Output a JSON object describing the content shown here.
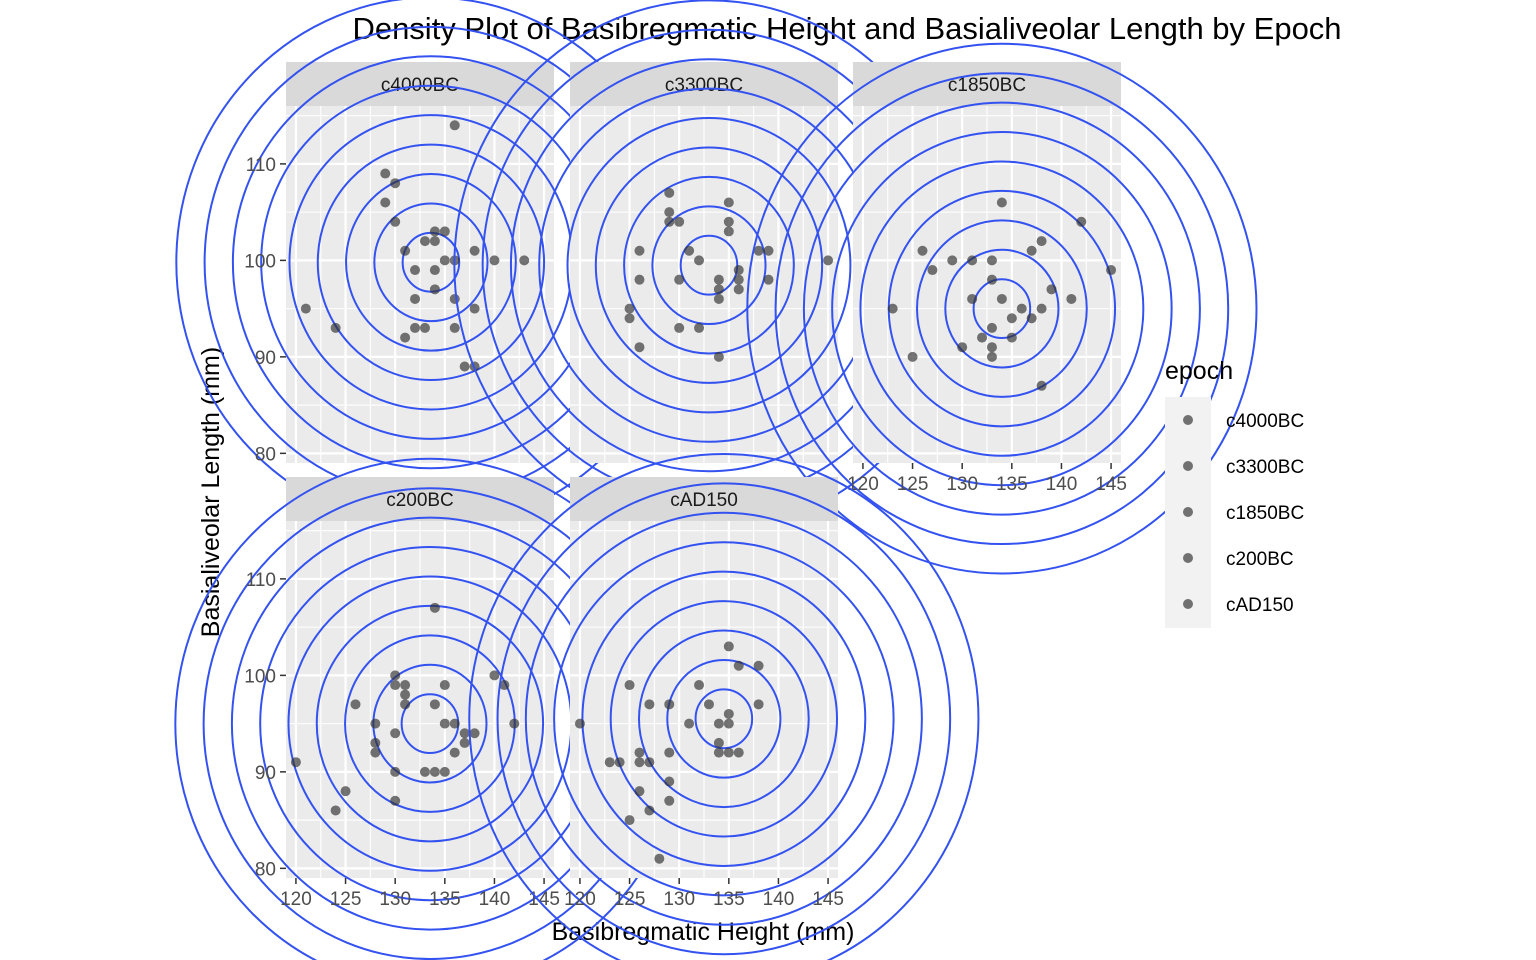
{
  "chart_data": {
    "type": "scatter",
    "subtype": "faceted scatter with 2D density contours",
    "title": "Density Plot of Basibregmatic Height and Basialiveolar Length by Epoch",
    "xlabel": "Basibregmatic Height (mm)",
    "ylabel": "Basialiveolar Length (mm)",
    "xlim": [
      119,
      146
    ],
    "ylim": [
      79,
      116
    ],
    "x_ticks": [
      120,
      125,
      130,
      135,
      140,
      145
    ],
    "y_ticks": [
      80,
      90,
      100,
      110
    ],
    "x_tick_labels": [
      "120",
      "125",
      "130",
      "135",
      "140",
      "145"
    ],
    "y_tick_labels": [
      "80",
      "90",
      "100",
      "110"
    ],
    "point_color": "#333333",
    "contour_color": "#3352f0",
    "panel_bg": "#ebebeb",
    "strip_bg": "#d9d9d9",
    "legend": {
      "title": "epoch",
      "position": "right",
      "entries": [
        "c4000BC",
        "c3300BC",
        "c1850BC",
        "c200BC",
        "cAD150"
      ]
    },
    "facets": [
      {
        "label": "c4000BC",
        "center": [
          133.6,
          99.8
        ],
        "points": [
          [
            136,
            114
          ],
          [
            129,
            109
          ],
          [
            130,
            108
          ],
          [
            129,
            106
          ],
          [
            130,
            104
          ],
          [
            134,
            103
          ],
          [
            135,
            103
          ],
          [
            133,
            102
          ],
          [
            134,
            102
          ],
          [
            131,
            101
          ],
          [
            138,
            101
          ],
          [
            132,
            99
          ],
          [
            134,
            99
          ],
          [
            135,
            100
          ],
          [
            136,
            100
          ],
          [
            140,
            100
          ],
          [
            143,
            100
          ],
          [
            121,
            95
          ],
          [
            124,
            93
          ],
          [
            132,
            96
          ],
          [
            136,
            96
          ],
          [
            134,
            97
          ],
          [
            138,
            95
          ],
          [
            132,
            93
          ],
          [
            133,
            93
          ],
          [
            136,
            93
          ],
          [
            131,
            92
          ],
          [
            137,
            89
          ],
          [
            138,
            89
          ]
        ]
      },
      {
        "label": "c3300BC",
        "center": [
          133.0,
          99.5
        ],
        "points": [
          [
            129,
            107
          ],
          [
            129,
            105
          ],
          [
            135,
            106
          ],
          [
            129,
            104
          ],
          [
            130,
            104
          ],
          [
            135,
            104
          ],
          [
            135,
            103
          ],
          [
            131,
            101
          ],
          [
            132,
            100
          ],
          [
            126,
            101
          ],
          [
            138,
            101
          ],
          [
            139,
            101
          ],
          [
            136,
            99
          ],
          [
            134,
            98
          ],
          [
            130,
            98
          ],
          [
            136,
            98
          ],
          [
            126,
            98
          ],
          [
            139,
            98
          ],
          [
            134,
            97
          ],
          [
            136,
            97
          ],
          [
            134,
            96
          ],
          [
            125,
            95
          ],
          [
            125,
            94
          ],
          [
            126,
            91
          ],
          [
            130,
            93
          ],
          [
            132,
            93
          ],
          [
            134,
            90
          ],
          [
            145,
            100
          ]
        ]
      },
      {
        "label": "c1850BC",
        "center": [
          134.0,
          95.0
        ],
        "points": [
          [
            134,
            106
          ],
          [
            142,
            104
          ],
          [
            126,
            101
          ],
          [
            127,
            99
          ],
          [
            129,
            100
          ],
          [
            131,
            100
          ],
          [
            133,
            100
          ],
          [
            137,
            101
          ],
          [
            138,
            102
          ],
          [
            145,
            99
          ],
          [
            133,
            98
          ],
          [
            139,
            97
          ],
          [
            131,
            96
          ],
          [
            134,
            96
          ],
          [
            136,
            95
          ],
          [
            138,
            95
          ],
          [
            141,
            96
          ],
          [
            123,
            95
          ],
          [
            135,
            94
          ],
          [
            137,
            94
          ],
          [
            132,
            92
          ],
          [
            135,
            92
          ],
          [
            133,
            93
          ],
          [
            130,
            91
          ],
          [
            133,
            91
          ],
          [
            133,
            90
          ],
          [
            125,
            90
          ],
          [
            138,
            87
          ]
        ]
      },
      {
        "label": "c200BC",
        "center": [
          133.5,
          95.0
        ],
        "points": [
          [
            134,
            107
          ],
          [
            130,
            100
          ],
          [
            140,
            100
          ],
          [
            130,
            99
          ],
          [
            131,
            99
          ],
          [
            135,
            99
          ],
          [
            141,
            99
          ],
          [
            131,
            98
          ],
          [
            126,
            97
          ],
          [
            131,
            97
          ],
          [
            134,
            97
          ],
          [
            128,
            95
          ],
          [
            135,
            95
          ],
          [
            136,
            95
          ],
          [
            142,
            95
          ],
          [
            137,
            94
          ],
          [
            138,
            94
          ],
          [
            130,
            94
          ],
          [
            128,
            93
          ],
          [
            137,
            93
          ],
          [
            128,
            92
          ],
          [
            136,
            92
          ],
          [
            133,
            90
          ],
          [
            134,
            90
          ],
          [
            135,
            90
          ],
          [
            130,
            90
          ],
          [
            130,
            87
          ],
          [
            120,
            91
          ],
          [
            125,
            88
          ],
          [
            124,
            86
          ]
        ]
      },
      {
        "label": "cAD150",
        "center": [
          134.5,
          95.5
        ],
        "points": [
          [
            135,
            103
          ],
          [
            136,
            101
          ],
          [
            138,
            101
          ],
          [
            125,
            99
          ],
          [
            132,
            99
          ],
          [
            127,
            97
          ],
          [
            129,
            97
          ],
          [
            133,
            97
          ],
          [
            138,
            97
          ],
          [
            135,
            96
          ],
          [
            131,
            95
          ],
          [
            134,
            95
          ],
          [
            135,
            95
          ],
          [
            120,
            95
          ],
          [
            126,
            92
          ],
          [
            129,
            92
          ],
          [
            134,
            93
          ],
          [
            134,
            92
          ],
          [
            135,
            92
          ],
          [
            136,
            92
          ],
          [
            123,
            91
          ],
          [
            124,
            91
          ],
          [
            126,
            91
          ],
          [
            127,
            91
          ],
          [
            129,
            89
          ],
          [
            126,
            88
          ],
          [
            129,
            87
          ],
          [
            127,
            86
          ],
          [
            125,
            85
          ],
          [
            128,
            81
          ]
        ]
      }
    ]
  }
}
